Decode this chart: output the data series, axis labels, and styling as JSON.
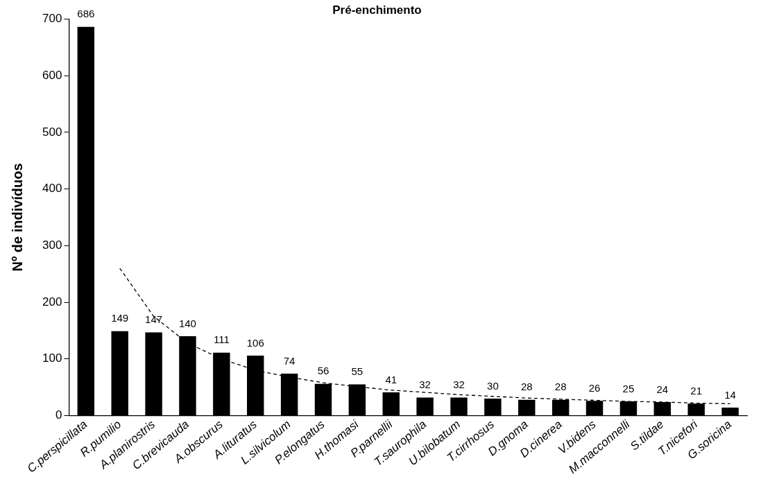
{
  "chart_data": {
    "type": "bar",
    "title": "Pré-enchimento",
    "ylabel": "Nº de indivíduos",
    "categories": [
      "C.perspicillata",
      "R.pumilio",
      "A.planirostris",
      "C.brevicauda",
      "A.obscurus",
      "A.lituratus",
      "L.silvicolum",
      "P.elongatus",
      "H.thomasi",
      "P.parnellii",
      "T.saurophila",
      "U.bilobatum",
      "T.cirrhosus",
      "D.gnoma",
      "D.cinerea",
      "V.bidens",
      "M.macconnelli",
      "S.tildae",
      "T.nicefori",
      "G.soricina"
    ],
    "series": [
      {
        "color": "#000000",
        "values": [
          686,
          149,
          147,
          140,
          111,
          106,
          74,
          56,
          55,
          41,
          32,
          32,
          30,
          28,
          28,
          26,
          25,
          24,
          21,
          14
        ],
        "value_labels": [
          "686",
          "149",
          "147",
          "140",
          "111",
          "106",
          "74",
          "56",
          "55",
          "41",
          "32",
          "32",
          "30",
          "28",
          "28",
          "26",
          "25",
          "24",
          "21",
          "14"
        ]
      },
      {
        "type": "line",
        "color": "#000000",
        "line_style": "dashed",
        "marker": "none",
        "values": [
          null,
          260,
          175,
          128,
          100,
          80,
          68,
          58,
          51,
          45,
          41,
          37,
          34,
          31,
          29,
          27,
          25,
          24,
          22,
          21
        ]
      }
    ],
    "ylim": [
      0,
      700
    ],
    "yticks": [
      0,
      100,
      200,
      300,
      400,
      500,
      600,
      700
    ],
    "grid": false,
    "legend": false
  }
}
